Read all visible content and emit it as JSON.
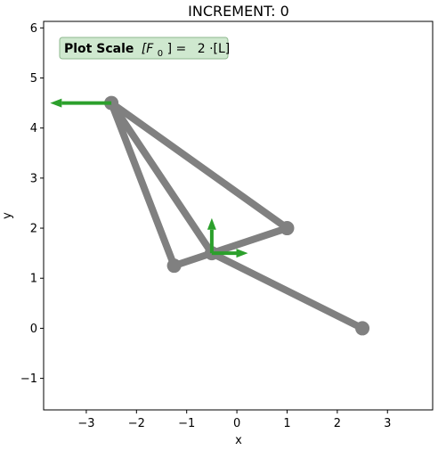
{
  "chart_data": {
    "type": "line",
    "title": "INCREMENT: 0",
    "xlabel": "x",
    "ylabel": "y",
    "xlim": [
      -3.85,
      3.9
    ],
    "ylim": [
      -1.63,
      6.13
    ],
    "xticks": [
      -3,
      -2,
      -1,
      0,
      1,
      2,
      3
    ],
    "yticks": [
      -1,
      0,
      1,
      2,
      3,
      4,
      5,
      6
    ],
    "xtick_labels": [
      "−3",
      "−2",
      "−1",
      "0",
      "1",
      "2",
      "3"
    ],
    "ytick_labels": [
      "−1",
      "0",
      "1",
      "2",
      "3",
      "4",
      "5",
      "6"
    ],
    "grid": false,
    "nodes": [
      {
        "x": -2.5,
        "y": 4.5
      },
      {
        "x": -1.25,
        "y": 1.25
      },
      {
        "x": -0.5,
        "y": 1.5
      },
      {
        "x": 1.0,
        "y": 2.0
      },
      {
        "x": 2.5,
        "y": 0.0
      }
    ],
    "members": [
      {
        "from": [
          -2.5,
          4.5
        ],
        "to": [
          -1.25,
          1.25
        ]
      },
      {
        "from": [
          -2.5,
          4.5
        ],
        "to": [
          -0.5,
          1.5
        ]
      },
      {
        "from": [
          -2.5,
          4.5
        ],
        "to": [
          1.0,
          2.0
        ]
      },
      {
        "from": [
          -1.25,
          1.25
        ],
        "to": [
          -0.5,
          1.5
        ]
      },
      {
        "from": [
          -0.5,
          1.5
        ],
        "to": [
          1.0,
          2.0
        ]
      },
      {
        "from": [
          -0.5,
          1.5
        ],
        "to": [
          2.5,
          0.0
        ]
      }
    ],
    "arrows": [
      {
        "from": [
          -2.5,
          4.5
        ],
        "to": [
          -3.72,
          4.5
        ]
      },
      {
        "from": [
          -0.5,
          1.5
        ],
        "to": [
          -0.5,
          2.2
        ]
      },
      {
        "from": [
          -0.5,
          1.5
        ],
        "to": [
          0.22,
          1.5
        ]
      }
    ],
    "annotation": {
      "bold": "Plot Scale",
      "formula_lhs": "[F",
      "formula_sub": "0",
      "formula_rhs": "] =",
      "value": "2 ·[L]"
    },
    "colors": {
      "member": "#808080",
      "node": "#808080",
      "arrow": "#2ca02c",
      "annotation_bg": "#cfe8cf",
      "annotation_border": "#8fb98f"
    }
  }
}
